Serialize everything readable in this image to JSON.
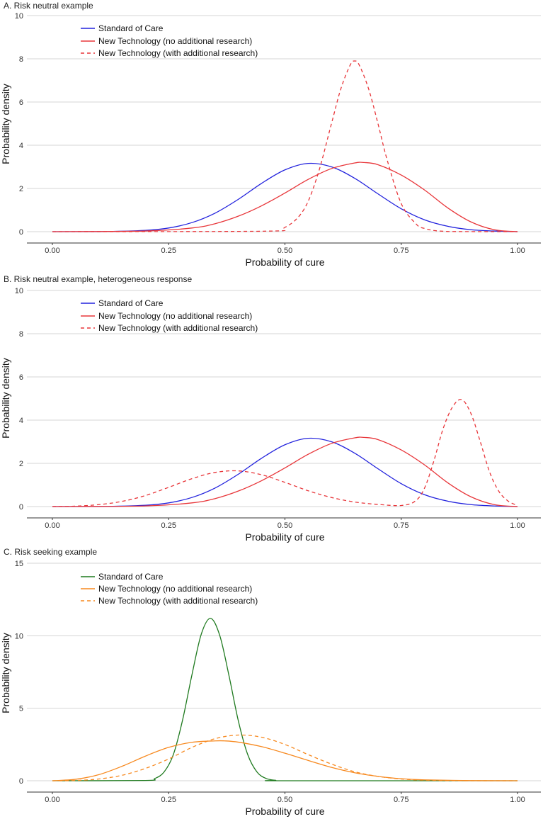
{
  "chart_data": [
    {
      "type": "line",
      "title": "A. Risk neutral example",
      "xlabel": "Probability of cure",
      "ylabel": "Probability density",
      "xlim": [
        0,
        1
      ],
      "ylim": [
        0,
        10
      ],
      "xticks": [
        "0.00",
        "0.25",
        "0.50",
        "0.75",
        "1.00"
      ],
      "xtick_values": [
        0,
        0.25,
        0.5,
        0.75,
        1
      ],
      "yticks": [
        "0",
        "2",
        "4",
        "6",
        "8",
        "10"
      ],
      "ytick_values": [
        0,
        2,
        4,
        6,
        8,
        10
      ],
      "grid": true,
      "legend_position": "top-left",
      "series": [
        {
          "name": "Standard of Care",
          "color": "#2222dd",
          "dash": "solid",
          "x": [
            0,
            0.1,
            0.2,
            0.25,
            0.3,
            0.35,
            0.4,
            0.45,
            0.5,
            0.55,
            0.6,
            0.65,
            0.7,
            0.75,
            0.8,
            0.85,
            0.9,
            0.95,
            1.0
          ],
          "y": [
            0,
            0.0,
            0.06,
            0.17,
            0.42,
            0.86,
            1.5,
            2.24,
            2.86,
            3.16,
            3.0,
            2.47,
            1.75,
            1.06,
            0.55,
            0.25,
            0.09,
            0.03,
            0
          ]
        },
        {
          "name": "New Technology (no additional research)",
          "color": "#e8363a",
          "dash": "solid",
          "x": [
            0,
            0.2,
            0.3,
            0.35,
            0.4,
            0.45,
            0.5,
            0.55,
            0.6,
            0.65,
            0.67,
            0.7,
            0.75,
            0.8,
            0.85,
            0.9,
            0.95,
            1.0
          ],
          "y": [
            0,
            0.03,
            0.17,
            0.37,
            0.72,
            1.2,
            1.79,
            2.42,
            2.92,
            3.18,
            3.2,
            3.1,
            2.62,
            1.93,
            1.1,
            0.45,
            0.09,
            0
          ]
        },
        {
          "name": "New Technology (with additional research)",
          "color": "#e8363a",
          "dash": "dashed",
          "x": [
            0,
            0.45,
            0.5,
            0.54,
            0.57,
            0.6,
            0.62,
            0.64,
            0.65,
            0.66,
            0.68,
            0.7,
            0.72,
            0.75,
            0.78,
            0.8,
            0.85,
            1.0
          ],
          "y": [
            0,
            0.02,
            0.2,
            1.0,
            2.6,
            5.0,
            6.6,
            7.7,
            7.9,
            7.7,
            6.6,
            5.0,
            3.3,
            1.3,
            0.4,
            0.15,
            0.01,
            0
          ]
        }
      ]
    },
    {
      "type": "line",
      "title": "B. Risk neutral example, heterogeneous response",
      "xlabel": "Probability of cure",
      "ylabel": "Probability density",
      "xlim": [
        0,
        1
      ],
      "ylim": [
        0,
        10
      ],
      "xticks": [
        "0.00",
        "0.25",
        "0.50",
        "0.75",
        "1.00"
      ],
      "xtick_values": [
        0,
        0.25,
        0.5,
        0.75,
        1
      ],
      "yticks": [
        "0",
        "2",
        "4",
        "6",
        "8",
        "10"
      ],
      "ytick_values": [
        0,
        2,
        4,
        6,
        8,
        10
      ],
      "grid": true,
      "legend_position": "top-left",
      "series": [
        {
          "name": "Standard of Care",
          "color": "#2222dd",
          "dash": "solid",
          "x": [
            0,
            0.1,
            0.2,
            0.25,
            0.3,
            0.35,
            0.4,
            0.45,
            0.5,
            0.55,
            0.6,
            0.65,
            0.7,
            0.75,
            0.8,
            0.85,
            0.9,
            0.95,
            1.0
          ],
          "y": [
            0,
            0.0,
            0.06,
            0.17,
            0.42,
            0.86,
            1.5,
            2.24,
            2.86,
            3.16,
            3.0,
            2.47,
            1.75,
            1.06,
            0.55,
            0.25,
            0.09,
            0.03,
            0
          ]
        },
        {
          "name": "New Technology (no additional research)",
          "color": "#e8363a",
          "dash": "solid",
          "x": [
            0,
            0.2,
            0.3,
            0.35,
            0.4,
            0.45,
            0.5,
            0.55,
            0.6,
            0.65,
            0.67,
            0.7,
            0.75,
            0.8,
            0.85,
            0.9,
            0.95,
            1.0
          ],
          "y": [
            0,
            0.03,
            0.17,
            0.37,
            0.72,
            1.2,
            1.79,
            2.42,
            2.92,
            3.18,
            3.2,
            3.1,
            2.62,
            1.93,
            1.1,
            0.45,
            0.09,
            0
          ]
        },
        {
          "name": "New Technology (with additional research)",
          "color": "#e8363a",
          "dash": "dashed",
          "x": [
            0,
            0.05,
            0.1,
            0.15,
            0.2,
            0.25,
            0.3,
            0.35,
            0.4,
            0.45,
            0.5,
            0.55,
            0.6,
            0.65,
            0.7,
            0.75,
            0.78,
            0.8,
            0.82,
            0.84,
            0.86,
            0.88,
            0.9,
            0.92,
            0.94,
            0.96,
            0.98,
            1.0
          ],
          "y": [
            0,
            0.02,
            0.09,
            0.24,
            0.51,
            0.89,
            1.29,
            1.58,
            1.65,
            1.47,
            1.12,
            0.73,
            0.42,
            0.21,
            0.1,
            0.05,
            0.25,
            0.85,
            2.1,
            3.6,
            4.6,
            4.95,
            4.3,
            3.0,
            1.6,
            0.7,
            0.25,
            0.05
          ]
        }
      ]
    },
    {
      "type": "line",
      "title": "C. Risk seeking example",
      "xlabel": "Probability of cure",
      "ylabel": "Probability density",
      "xlim": [
        0,
        1
      ],
      "ylim": [
        0,
        15
      ],
      "xticks": [
        "0.00",
        "0.25",
        "0.50",
        "0.75",
        "1.00"
      ],
      "xtick_values": [
        0,
        0.25,
        0.5,
        0.75,
        1
      ],
      "yticks": [
        "0",
        "5",
        "10",
        "15"
      ],
      "ytick_values": [
        0,
        5,
        10,
        15
      ],
      "grid": true,
      "legend_position": "top-left",
      "series": [
        {
          "name": "Standard of Care",
          "color": "#1f7a1f",
          "dash": "solid",
          "x": [
            0,
            0.2,
            0.22,
            0.24,
            0.26,
            0.28,
            0.3,
            0.32,
            0.34,
            0.36,
            0.38,
            0.4,
            0.42,
            0.44,
            0.46,
            0.48,
            0.5,
            1.0
          ],
          "y": [
            0,
            0.02,
            0.15,
            0.6,
            1.8,
            4.2,
            7.3,
            10.1,
            11.2,
            10.0,
            7.2,
            4.1,
            1.8,
            0.6,
            0.15,
            0.03,
            0,
            0
          ]
        },
        {
          "name": "New Technology (no additional research)",
          "color": "#f7891f",
          "dash": "solid",
          "x": [
            0,
            0.05,
            0.1,
            0.15,
            0.2,
            0.25,
            0.3,
            0.35,
            0.37,
            0.4,
            0.45,
            0.5,
            0.55,
            0.6,
            0.65,
            0.7,
            0.75,
            0.8,
            0.9,
            1.0
          ],
          "y": [
            0,
            0.1,
            0.42,
            1.0,
            1.7,
            2.3,
            2.65,
            2.75,
            2.75,
            2.66,
            2.35,
            1.9,
            1.4,
            0.92,
            0.55,
            0.3,
            0.14,
            0.06,
            0.01,
            0
          ]
        },
        {
          "name": "New Technology (with additional research)",
          "color": "#f7891f",
          "dash": "dashed",
          "x": [
            0,
            0.05,
            0.1,
            0.15,
            0.2,
            0.25,
            0.3,
            0.35,
            0.4,
            0.45,
            0.5,
            0.55,
            0.6,
            0.65,
            0.7,
            0.75,
            0.8,
            0.9,
            1.0
          ],
          "y": [
            0,
            0.02,
            0.12,
            0.38,
            0.85,
            1.5,
            2.3,
            2.9,
            3.15,
            3.0,
            2.5,
            1.8,
            1.15,
            0.62,
            0.3,
            0.12,
            0.04,
            0.0,
            0
          ]
        }
      ]
    }
  ]
}
